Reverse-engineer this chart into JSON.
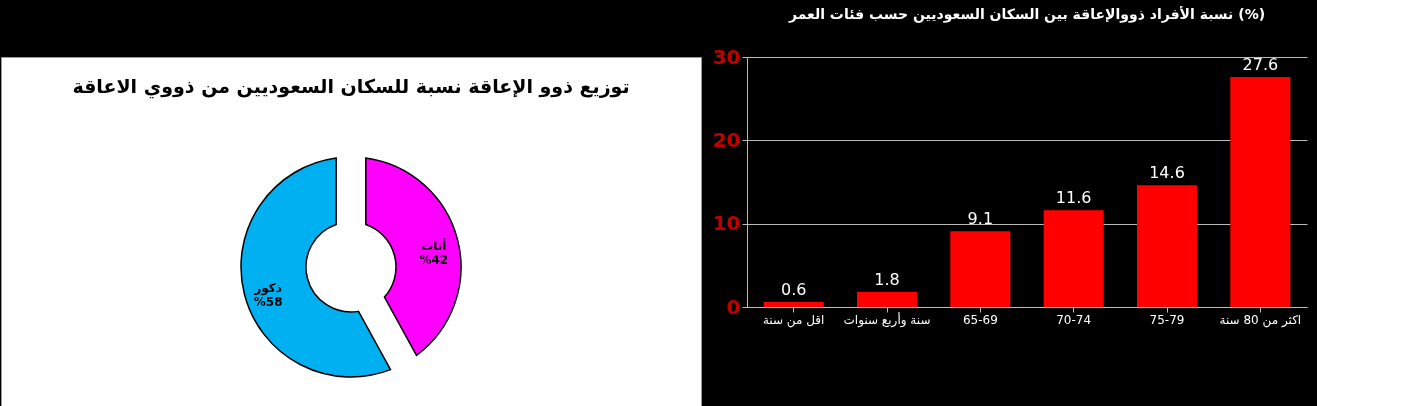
{
  "chart_data": [
    {
      "type": "donut",
      "title": "توزيع ذوو الإعاقة نسبة للسكان السعوديين من ذووي الاعاقة",
      "categories": [
        "أناث",
        "ذكور"
      ],
      "values": [
        42,
        58
      ],
      "colors": [
        "#ff00ff",
        "#00b0f0"
      ],
      "value_labels": [
        "%42",
        "%58"
      ]
    },
    {
      "type": "bar",
      "title": "نسبة الأفراد ذووالإعاقة بين السكان السعوديين حسب فئات العمر  (%)",
      "categories": [
        "اقل من سنة",
        "سنة وأربع سنوات",
        "65-69",
        "70-74",
        "75-79",
        "اكثر من 80 سنة"
      ],
      "values": [
        0.6,
        1.8,
        9.1,
        11.6,
        14.6,
        27.6
      ],
      "color": "#ff0000",
      "ylim": [
        0,
        30
      ],
      "yticks": [
        0,
        10,
        20,
        30
      ],
      "grid": "y",
      "data_labels": true
    }
  ]
}
